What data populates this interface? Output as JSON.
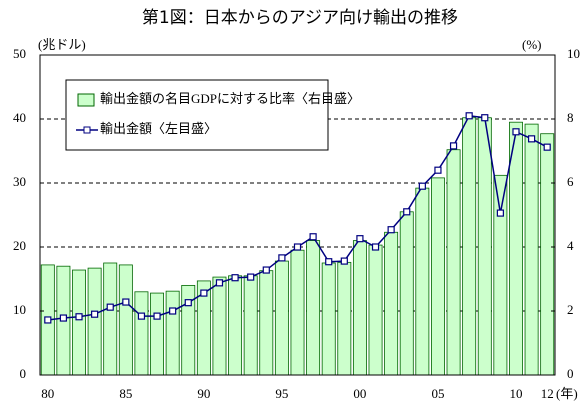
{
  "chart_data": {
    "type": "bar-line",
    "title": "第1図：日本からのアジア向け輸出の推移",
    "y_label": "(兆ドル)",
    "y2_label": "(%)",
    "x_label": "(年)",
    "categories": [
      "80",
      null,
      null,
      null,
      null,
      "85",
      null,
      null,
      null,
      null,
      "90",
      null,
      null,
      null,
      null,
      "95",
      null,
      null,
      null,
      null,
      "00",
      null,
      null,
      null,
      null,
      "05",
      null,
      null,
      null,
      null,
      "10",
      null,
      "12"
    ],
    "series": [
      {
        "name": "輸出金額の名目GDPに対する比率〈右目盛〉",
        "type": "bar",
        "axis": "y2",
        "color": "#ccffcc",
        "edge": "#006600",
        "values": [
          3.44,
          3.4,
          3.28,
          3.34,
          3.5,
          3.44,
          2.6,
          2.56,
          2.62,
          2.8,
          2.94,
          3.06,
          3.1,
          3.1,
          3.26,
          3.56,
          3.9,
          4.2,
          3.5,
          3.52,
          4.2,
          4.06,
          4.46,
          5.1,
          5.84,
          6.16,
          7.04,
          8.04,
          8.04,
          6.24,
          7.9,
          7.84,
          7.54
        ]
      },
      {
        "name": "輸出金額〈左目盛〉",
        "type": "line",
        "axis": "y",
        "color": "#000080",
        "values": [
          8.6,
          8.9,
          9.1,
          9.5,
          10.6,
          11.4,
          9.2,
          9.2,
          10.0,
          11.3,
          12.8,
          14.4,
          15.2,
          15.3,
          16.4,
          18.3,
          20.0,
          21.6,
          17.7,
          17.8,
          21.3,
          20.0,
          22.7,
          25.5,
          29.5,
          32.0,
          35.8,
          40.5,
          40.2,
          25.3,
          38.0,
          36.9,
          35.6
        ]
      }
    ],
    "ylim": [
      0,
      50
    ],
    "yticks": [
      0,
      10,
      20,
      30,
      40,
      50
    ],
    "y2lim": [
      0,
      10
    ],
    "y2ticks": [
      0,
      2,
      4,
      6,
      8,
      10
    ],
    "grid": true,
    "legend": "upper left"
  }
}
